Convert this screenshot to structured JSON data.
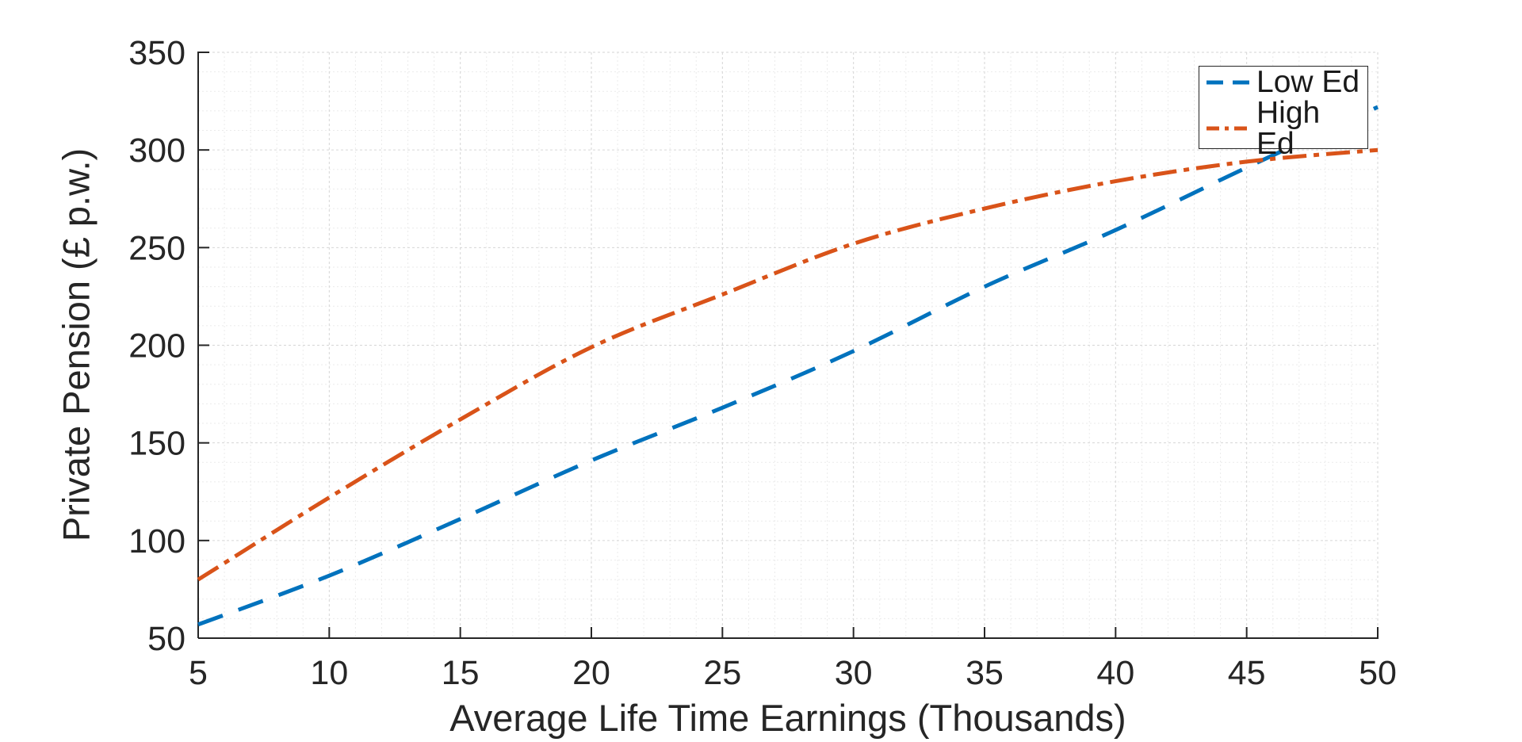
{
  "figure": {
    "background": "#ffffff",
    "axis_color": "#262626",
    "major_grid_color": "#d6d6d6",
    "minor_grid_color": "#ebebeb"
  },
  "chart_data": {
    "type": "line",
    "title": "",
    "xlabel": "Average Life Time Earnings (Thousands)",
    "ylabel": "Private Pension (£ p.w.)",
    "xlim": [
      5,
      50
    ],
    "ylim": [
      50,
      350
    ],
    "xticks": [
      5,
      10,
      15,
      20,
      25,
      30,
      35,
      40,
      45,
      50
    ],
    "yticks": [
      50,
      100,
      150,
      200,
      250,
      300,
      350
    ],
    "x_minor_step": 1,
    "y_minor_step": 10,
    "grid": "on",
    "minor_grid": "on",
    "legend_position": "top-right",
    "x": [
      5,
      10,
      15,
      20,
      25,
      30,
      35,
      40,
      45,
      50
    ],
    "series": [
      {
        "name": "Low Ed",
        "color": "#0072BD",
        "style": "dashed",
        "values": [
          57,
          82,
          111,
          141,
          168,
          197,
          230,
          259,
          291,
          322
        ]
      },
      {
        "name": "High Ed",
        "color": "#D95319",
        "style": "dash-dot",
        "values": [
          80,
          122,
          162,
          199,
          226,
          252,
          270,
          284,
          294,
          300
        ]
      }
    ]
  }
}
